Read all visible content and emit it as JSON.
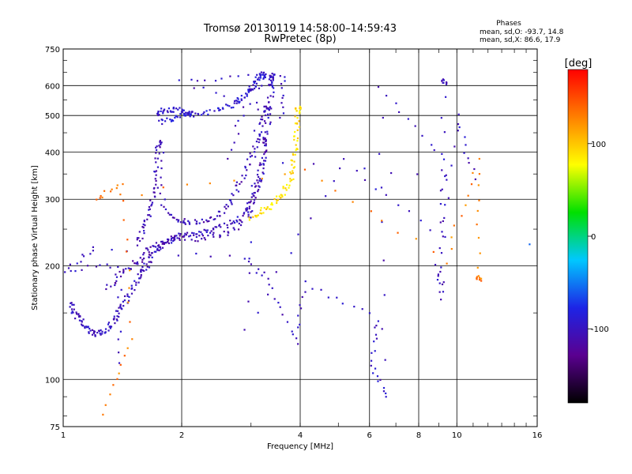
{
  "chart_data": {
    "type": "scatter",
    "title": "Tromsø 20130119 14:58:00–14:59:43",
    "subtitle": "RwPretec (8p)",
    "xlabel": "Frequency [MHz]",
    "ylabel": "Stationary phase Virtual Height [km]",
    "xscale": "log",
    "yscale": "log",
    "xlim": [
      1,
      16
    ],
    "ylim": [
      75,
      750
    ],
    "x_ticks": [
      1,
      2,
      4,
      6,
      8,
      10,
      16
    ],
    "y_ticks": [
      75,
      100,
      200,
      300,
      400,
      500,
      600,
      750
    ],
    "grid": true,
    "stats": {
      "heading": "Phases",
      "line_o": "mean, sd,O: -93.7, 14.8",
      "line_x": "mean, sd,X:  86.6, 17.9"
    },
    "colorbar": {
      "label": "[deg]",
      "ticks": [
        100,
        0,
        -100
      ],
      "range": [
        -180,
        180
      ],
      "stops": [
        "#000000",
        "#5a0090",
        "#1d24e6",
        "#00c8ff",
        "#00e000",
        "#ffff00",
        "#ff8000",
        "#ff0000"
      ]
    },
    "series": [
      {
        "trace": "o_lower",
        "phase": -100,
        "points": [
          [
            1.05,
            160
          ],
          [
            1.07,
            150
          ],
          [
            1.1,
            145
          ],
          [
            1.14,
            138
          ],
          [
            1.18,
            133
          ],
          [
            1.22,
            131
          ],
          [
            1.27,
            134
          ],
          [
            1.32,
            140
          ],
          [
            1.37,
            148
          ],
          [
            1.42,
            158
          ],
          [
            1.48,
            170
          ],
          [
            1.55,
            185
          ],
          [
            1.6,
            195
          ],
          [
            1.65,
            205
          ],
          [
            1.72,
            218
          ],
          [
            1.8,
            228
          ],
          [
            1.9,
            236
          ],
          [
            2.0,
            240
          ],
          [
            2.15,
            243
          ],
          [
            2.3,
            246
          ],
          [
            2.5,
            252
          ],
          [
            2.7,
            262
          ],
          [
            2.9,
            278
          ],
          [
            3.05,
            300
          ],
          [
            3.15,
            335
          ],
          [
            3.25,
            390
          ],
          [
            3.3,
            460
          ],
          [
            3.35,
            530
          ],
          [
            3.38,
            600
          ],
          [
            3.4,
            640
          ]
        ]
      },
      {
        "trace": "o_lower_band",
        "phase": -110,
        "points": [
          [
            1.3,
            175
          ],
          [
            1.4,
            190
          ],
          [
            1.5,
            200
          ],
          [
            1.6,
            212
          ],
          [
            1.7,
            225
          ],
          [
            1.8,
            232
          ],
          [
            1.95,
            238
          ],
          [
            2.2,
            236
          ],
          [
            2.5,
            240
          ],
          [
            2.8,
            255
          ],
          [
            3.0,
            285
          ],
          [
            3.1,
            320
          ],
          [
            3.2,
            370
          ],
          [
            3.25,
            430
          ]
        ]
      },
      {
        "trace": "o_mid_hook",
        "phase": -105,
        "points": [
          [
            1.55,
            230
          ],
          [
            1.6,
            250
          ],
          [
            1.65,
            275
          ],
          [
            1.7,
            305
          ],
          [
            1.72,
            345
          ],
          [
            1.74,
            400
          ],
          [
            1.76,
            430
          ],
          [
            1.8,
            285
          ],
          [
            1.95,
            265
          ],
          [
            2.1,
            260
          ],
          [
            2.3,
            262
          ],
          [
            2.5,
            272
          ],
          [
            2.65,
            295
          ],
          [
            2.8,
            330
          ],
          [
            2.95,
            370
          ],
          [
            3.1,
            420
          ],
          [
            3.2,
            470
          ],
          [
            3.28,
            520
          ]
        ]
      },
      {
        "trace": "o_upper",
        "phase": -90,
        "points": [
          [
            1.75,
            480
          ],
          [
            1.9,
            490
          ],
          [
            2.05,
            500
          ],
          [
            2.25,
            508
          ],
          [
            2.5,
            515
          ],
          [
            2.7,
            535
          ],
          [
            2.85,
            555
          ],
          [
            2.95,
            580
          ],
          [
            3.05,
            605
          ],
          [
            3.15,
            630
          ],
          [
            3.22,
            640
          ]
        ]
      },
      {
        "trace": "o_upper_left",
        "phase": -95,
        "points": [
          [
            1.72,
            505
          ],
          [
            1.8,
            518
          ],
          [
            1.9,
            520
          ],
          [
            2.0,
            515
          ],
          [
            2.1,
            505
          ]
        ]
      },
      {
        "trace": "x_trace",
        "phase": 90,
        "points": [
          [
            3.0,
            268
          ],
          [
            3.15,
            275
          ],
          [
            3.3,
            285
          ],
          [
            3.5,
            300
          ],
          [
            3.65,
            315
          ],
          [
            3.78,
            340
          ],
          [
            3.85,
            375
          ],
          [
            3.9,
            420
          ],
          [
            3.92,
            470
          ],
          [
            3.95,
            520
          ]
        ]
      },
      {
        "trace": "scatter",
        "phase": -100,
        "points": [
          [
            1.4,
            110
          ],
          [
            1.38,
            200
          ],
          [
            1.02,
            195
          ],
          [
            1.2,
            225
          ],
          [
            2.9,
            210
          ],
          [
            3.35,
            180
          ],
          [
            3.9,
            125
          ],
          [
            4.1,
            180
          ],
          [
            6.3,
            145
          ],
          [
            6.1,
            110
          ],
          [
            6.6,
            90
          ],
          [
            6.4,
            600
          ],
          [
            9.2,
            380
          ],
          [
            9.2,
            165
          ],
          [
            8.9,
            200
          ],
          [
            10.1,
            500
          ],
          [
            11.0,
            340
          ],
          [
            2.65,
            390
          ],
          [
            2.95,
            580
          ],
          [
            3.6,
            640
          ],
          [
            3.6,
            500
          ],
          [
            2.0,
            610
          ],
          [
            3.1,
            650
          ],
          [
            2.9,
            135
          ],
          [
            5.2,
            380
          ],
          [
            9.2,
            235
          ],
          [
            9.3,
            615
          ]
        ]
      },
      {
        "trace": "warm_outliers",
        "phase": 130,
        "points": [
          [
            1.25,
            82
          ],
          [
            1.5,
            128
          ],
          [
            1.4,
            325
          ],
          [
            1.2,
            300
          ],
          [
            4.15,
            360
          ],
          [
            9.4,
            205
          ],
          [
            11.3,
            380
          ],
          [
            11.4,
            185
          ]
        ]
      },
      {
        "trace": "outlier_right",
        "phase": -60,
        "points": [
          [
            15.3,
            228
          ]
        ]
      }
    ]
  }
}
